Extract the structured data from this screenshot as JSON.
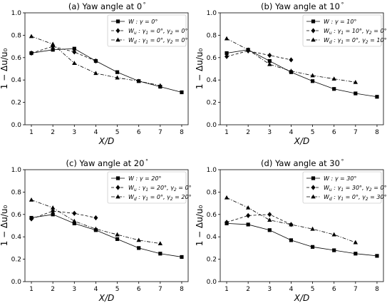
{
  "chart_data": [
    {
      "type": "line",
      "title": "(a) Yaw angle at 0$^\\circ$",
      "title_text": "(a) Yaw angle at 0",
      "xlabel": "X/D",
      "ylabel": "1 − Δu/u₀",
      "xlim": [
        0.7,
        8.3
      ],
      "ylim": [
        0,
        1
      ],
      "xticks": [
        1,
        2,
        3,
        4,
        5,
        6,
        7,
        8
      ],
      "yticks": [
        0.0,
        0.2,
        0.4,
        0.6,
        0.8,
        1.0
      ],
      "legend_position": "top-right",
      "series": [
        {
          "name": "W : γ = 0°",
          "label_parts": [
            "W",
            " : γ = 0°"
          ],
          "marker": "square",
          "linestyle": "solid",
          "x": [
            1,
            2,
            3,
            4,
            5,
            6,
            7,
            8
          ],
          "y": [
            0.64,
            0.67,
            0.68,
            0.57,
            0.47,
            0.39,
            0.34,
            0.29
          ]
        },
        {
          "name": "Wu : γ1 = 0°, γ2 = 0°",
          "label_parts": [
            "W",
            "u",
            " : γ",
            "1",
            " = 0°, γ",
            "2",
            " = 0°"
          ],
          "marker": "diamond",
          "linestyle": "dashed",
          "x": [
            1,
            2,
            3,
            4
          ],
          "y": [
            0.64,
            0.7,
            0.65,
            0.57
          ]
        },
        {
          "name": "Wd : γ1 = 0°, γ2 = 0°",
          "label_parts": [
            "W",
            "d",
            " : γ",
            "1",
            " = 0°, γ",
            "2",
            " = 0°"
          ],
          "marker": "triangle",
          "linestyle": "dashdot",
          "x": [
            1,
            2,
            3,
            4,
            5,
            6,
            7
          ],
          "y": [
            0.79,
            0.72,
            0.55,
            0.46,
            0.42,
            0.39,
            0.35
          ]
        }
      ]
    },
    {
      "type": "line",
      "title_text": "(b) Yaw angle at 10",
      "xlabel": "X/D",
      "ylabel": "1 − Δu/u₀",
      "xlim": [
        0.7,
        8.3
      ],
      "ylim": [
        0,
        1
      ],
      "xticks": [
        1,
        2,
        3,
        4,
        5,
        6,
        7,
        8
      ],
      "yticks": [
        0.0,
        0.2,
        0.4,
        0.6,
        0.8,
        1.0
      ],
      "legend_position": "top-right",
      "series": [
        {
          "name": "W : γ = 10°",
          "label_parts": [
            "W",
            " : γ = 10°"
          ],
          "marker": "square",
          "linestyle": "solid",
          "x": [
            1,
            2,
            3,
            4,
            5,
            6,
            7,
            8
          ],
          "y": [
            0.64,
            0.67,
            0.57,
            0.47,
            0.39,
            0.32,
            0.28,
            0.25
          ]
        },
        {
          "name": "Wu : γ1 = 10°, γ2 = 0°",
          "label_parts": [
            "W",
            "u",
            " : γ",
            "1",
            " = 10°, γ",
            "2",
            " = 0°"
          ],
          "marker": "diamond",
          "linestyle": "dashed",
          "x": [
            1,
            2,
            3,
            4
          ],
          "y": [
            0.61,
            0.66,
            0.62,
            0.58
          ]
        },
        {
          "name": "Wd : γ1 = 0°, γ2 = 10°",
          "label_parts": [
            "W",
            "d",
            " : γ",
            "1",
            " = 0°, γ",
            "2",
            " = 10°"
          ],
          "marker": "triangle",
          "linestyle": "dashdot",
          "x": [
            1,
            2,
            3,
            4,
            5,
            6,
            7
          ],
          "y": [
            0.77,
            0.67,
            0.54,
            0.48,
            0.44,
            0.41,
            0.38
          ]
        }
      ]
    },
    {
      "type": "line",
      "title_text": "(c) Yaw angle at 20",
      "xlabel": "X/D",
      "ylabel": "1 − Δu/u₀",
      "xlim": [
        0.7,
        8.3
      ],
      "ylim": [
        0,
        1
      ],
      "xticks": [
        1,
        2,
        3,
        4,
        5,
        6,
        7,
        8
      ],
      "yticks": [
        0.0,
        0.2,
        0.4,
        0.6,
        0.8,
        1.0
      ],
      "legend_position": "top-right",
      "series": [
        {
          "name": "W : γ = 20°",
          "label_parts": [
            "W",
            " : γ = 20°"
          ],
          "marker": "square",
          "linestyle": "solid",
          "x": [
            1,
            2,
            3,
            4,
            5,
            6,
            7,
            8
          ],
          "y": [
            0.57,
            0.6,
            0.52,
            0.46,
            0.38,
            0.3,
            0.25,
            0.22
          ]
        },
        {
          "name": "Wu : γ1 = 20°, γ2 = 0°",
          "label_parts": [
            "W",
            "u",
            " : γ",
            "1",
            " = 20°, γ",
            "2",
            " = 0°"
          ],
          "marker": "diamond",
          "linestyle": "dashed",
          "x": [
            1,
            2,
            3,
            4
          ],
          "y": [
            0.56,
            0.63,
            0.61,
            0.57
          ]
        },
        {
          "name": "Wd : γ1 = 0°, γ2 = 20°",
          "label_parts": [
            "W",
            "d",
            " : γ",
            "1",
            " = 0°, γ",
            "2",
            " = 20°"
          ],
          "marker": "triangle",
          "linestyle": "dashdot",
          "x": [
            1,
            2,
            3,
            4,
            5,
            6,
            7
          ],
          "y": [
            0.73,
            0.66,
            0.54,
            0.47,
            0.42,
            0.37,
            0.34
          ]
        }
      ]
    },
    {
      "type": "line",
      "title_text": "(d) Yaw angle at 30",
      "xlabel": "X/D",
      "ylabel": "1 − Δu/u₀",
      "xlim": [
        0.7,
        8.3
      ],
      "ylim": [
        0,
        1
      ],
      "xticks": [
        1,
        2,
        3,
        4,
        5,
        6,
        7,
        8
      ],
      "yticks": [
        0.0,
        0.2,
        0.4,
        0.6,
        0.8,
        1.0
      ],
      "legend_position": "top-right",
      "series": [
        {
          "name": "W : γ = 30°",
          "label_parts": [
            "W",
            " : γ = 30°"
          ],
          "marker": "square",
          "linestyle": "solid",
          "x": [
            1,
            2,
            3,
            4,
            5,
            6,
            7,
            8
          ],
          "y": [
            0.52,
            0.51,
            0.46,
            0.37,
            0.31,
            0.28,
            0.25,
            0.23
          ]
        },
        {
          "name": "Wu : γ1 = 30°, γ2 = 0°",
          "label_parts": [
            "W",
            "u",
            " : γ",
            "1",
            " = 30°, γ",
            "2",
            " = 0°"
          ],
          "marker": "diamond",
          "linestyle": "dashed",
          "x": [
            1,
            2,
            3,
            4
          ],
          "y": [
            0.53,
            0.59,
            0.6,
            0.51
          ]
        },
        {
          "name": "Wd : γ1 = 0°, γ2 = 30°",
          "label_parts": [
            "W",
            "d",
            " : γ",
            "1",
            " = 0°, γ",
            "2",
            " = 30°"
          ],
          "marker": "triangle",
          "linestyle": "dashdot",
          "x": [
            1,
            2,
            3,
            4,
            5,
            6,
            7
          ],
          "y": [
            0.75,
            0.66,
            0.55,
            0.51,
            0.47,
            0.42,
            0.35
          ]
        }
      ]
    }
  ]
}
